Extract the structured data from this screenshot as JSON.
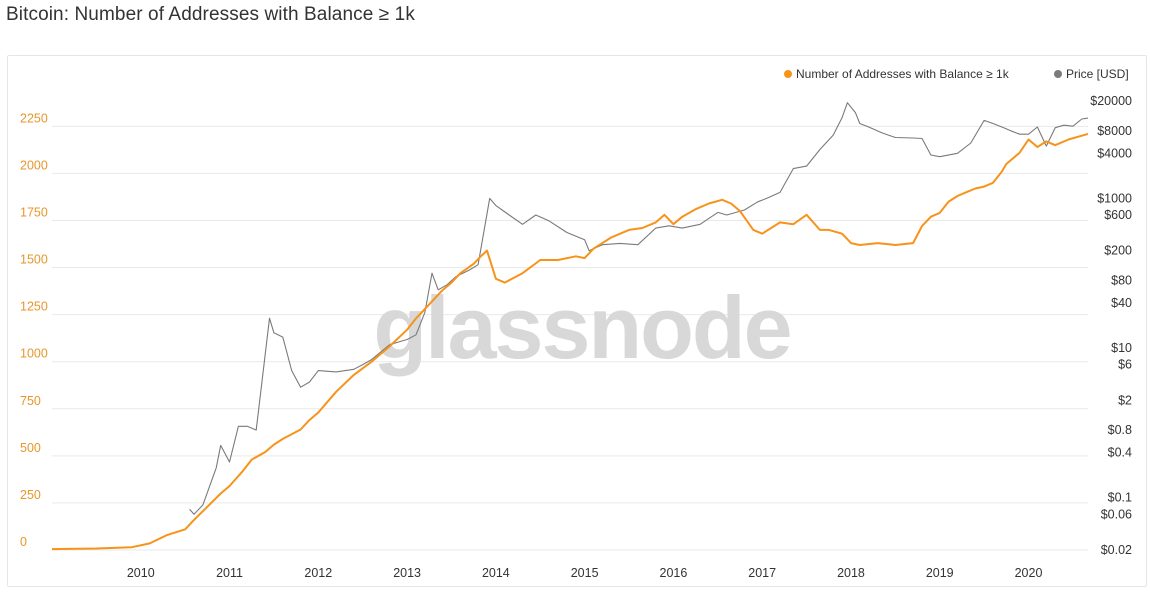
{
  "title": "Bitcoin: Number of Addresses with Balance ≥ 1k",
  "watermark": "glassnode",
  "chart_data": {
    "type": "line",
    "title": "Bitcoin: Number of Addresses with Balance ≥ 1k",
    "xlabel": "",
    "ylabel": "",
    "xlim": [
      2009.0,
      2020.67
    ],
    "x_ticks": [
      "2010",
      "2011",
      "2012",
      "2013",
      "2014",
      "2015",
      "2016",
      "2017",
      "2018",
      "2019",
      "2020"
    ],
    "y_left": {
      "lim": [
        0,
        2400
      ],
      "ticks": [
        "0",
        "250",
        "500",
        "750",
        "1000",
        "1250",
        "1500",
        "1750",
        "2000",
        "2250"
      ],
      "color": "#e8962a"
    },
    "y_right": {
      "scale": "log",
      "lim": [
        0.02,
        20000
      ],
      "ticks": [
        "$0.02",
        "$0.06",
        "$0.1",
        "$0.4",
        "$0.8",
        "$2",
        "$6",
        "$10",
        "$40",
        "$80",
        "$200",
        "$600",
        "$1000",
        "$4000",
        "$8000",
        "$20000"
      ]
    },
    "legend": {
      "placement": "top-right",
      "entries": [
        {
          "label": "Number of Addresses with Balance ≥ 1k",
          "color": "#f7931a"
        },
        {
          "label": "Price [USD]",
          "color": "#7a7a7a"
        }
      ]
    },
    "grid": true,
    "series": [
      {
        "name": "Number of Addresses with Balance ≥ 1k",
        "axis": "left",
        "color": "#f7931a",
        "x": [
          2009.0,
          2009.5,
          2009.9,
          2010.1,
          2010.3,
          2010.5,
          2010.6,
          2010.75,
          2010.9,
          2011.0,
          2011.15,
          2011.25,
          2011.4,
          2011.5,
          2011.6,
          2011.8,
          2011.9,
          2012.0,
          2012.2,
          2012.4,
          2012.6,
          2012.8,
          2013.0,
          2013.1,
          2013.2,
          2013.3,
          2013.4,
          2013.5,
          2013.6,
          2013.75,
          2013.83,
          2013.9,
          2014.0,
          2014.1,
          2014.3,
          2014.5,
          2014.7,
          2014.9,
          2015.0,
          2015.1,
          2015.3,
          2015.5,
          2015.65,
          2015.8,
          2015.9,
          2016.0,
          2016.1,
          2016.25,
          2016.4,
          2016.55,
          2016.65,
          2016.75,
          2016.9,
          2017.0,
          2017.2,
          2017.35,
          2017.5,
          2017.65,
          2017.75,
          2017.9,
          2018.0,
          2018.1,
          2018.3,
          2018.5,
          2018.7,
          2018.8,
          2018.9,
          2019.0,
          2019.1,
          2019.2,
          2019.3,
          2019.4,
          2019.5,
          2019.6,
          2019.7,
          2019.75,
          2019.9,
          2020.0,
          2020.1,
          2020.2,
          2020.3,
          2020.45,
          2020.6,
          2020.67
        ],
        "y": [
          5,
          8,
          15,
          35,
          80,
          110,
          160,
          230,
          300,
          340,
          420,
          480,
          520,
          560,
          590,
          640,
          690,
          730,
          840,
          930,
          1000,
          1080,
          1170,
          1230,
          1280,
          1330,
          1380,
          1420,
          1470,
          1520,
          1560,
          1590,
          1440,
          1420,
          1470,
          1540,
          1540,
          1560,
          1550,
          1600,
          1660,
          1700,
          1710,
          1740,
          1780,
          1730,
          1770,
          1810,
          1840,
          1860,
          1840,
          1800,
          1700,
          1680,
          1740,
          1730,
          1780,
          1700,
          1700,
          1680,
          1630,
          1620,
          1630,
          1620,
          1630,
          1720,
          1770,
          1790,
          1850,
          1880,
          1900,
          1920,
          1930,
          1950,
          2010,
          2050,
          2110,
          2180,
          2140,
          2170,
          2150,
          2180,
          2200,
          2210
        ]
      },
      {
        "name": "Price [USD]",
        "axis": "right",
        "color": "#7a7a7a",
        "x": [
          2010.55,
          2010.6,
          2010.7,
          2010.85,
          2010.9,
          2011.0,
          2011.1,
          2011.2,
          2011.3,
          2011.4,
          2011.45,
          2011.5,
          2011.6,
          2011.7,
          2011.8,
          2011.9,
          2012.0,
          2012.2,
          2012.4,
          2012.5,
          2012.6,
          2012.8,
          2012.9,
          2013.0,
          2013.1,
          2013.2,
          2013.28,
          2013.35,
          2013.45,
          2013.55,
          2013.7,
          2013.8,
          2013.93,
          2014.0,
          2014.15,
          2014.3,
          2014.45,
          2014.6,
          2014.8,
          2015.0,
          2015.05,
          2015.2,
          2015.4,
          2015.6,
          2015.8,
          2015.95,
          2016.1,
          2016.3,
          2016.5,
          2016.6,
          2016.8,
          2016.95,
          2017.05,
          2017.2,
          2017.35,
          2017.5,
          2017.65,
          2017.8,
          2017.9,
          2017.96,
          2018.05,
          2018.1,
          2018.2,
          2018.35,
          2018.5,
          2018.7,
          2018.8,
          2018.9,
          2019.0,
          2019.2,
          2019.35,
          2019.5,
          2019.6,
          2019.7,
          2019.8,
          2019.9,
          2020.0,
          2020.1,
          2020.2,
          2020.3,
          2020.4,
          2020.5,
          2020.6,
          2020.67
        ],
        "y": [
          0.07,
          0.06,
          0.08,
          0.25,
          0.5,
          0.3,
          0.9,
          0.9,
          0.8,
          8,
          25,
          16,
          14,
          5,
          3,
          3.5,
          5,
          4.8,
          5.2,
          6,
          7,
          11,
          12,
          13,
          15,
          30,
          100,
          60,
          70,
          90,
          110,
          130,
          1000,
          800,
          600,
          450,
          600,
          500,
          350,
          280,
          200,
          240,
          250,
          240,
          400,
          430,
          400,
          450,
          650,
          600,
          700,
          900,
          1000,
          1200,
          2500,
          2700,
          4500,
          7000,
          12000,
          19000,
          14000,
          10000,
          9000,
          7500,
          6500,
          6400,
          6300,
          3800,
          3600,
          4000,
          5500,
          11000,
          10000,
          9000,
          8000,
          7200,
          7200,
          9000,
          5000,
          8800,
          9500,
          9200,
          11500,
          11800
        ]
      }
    ]
  }
}
